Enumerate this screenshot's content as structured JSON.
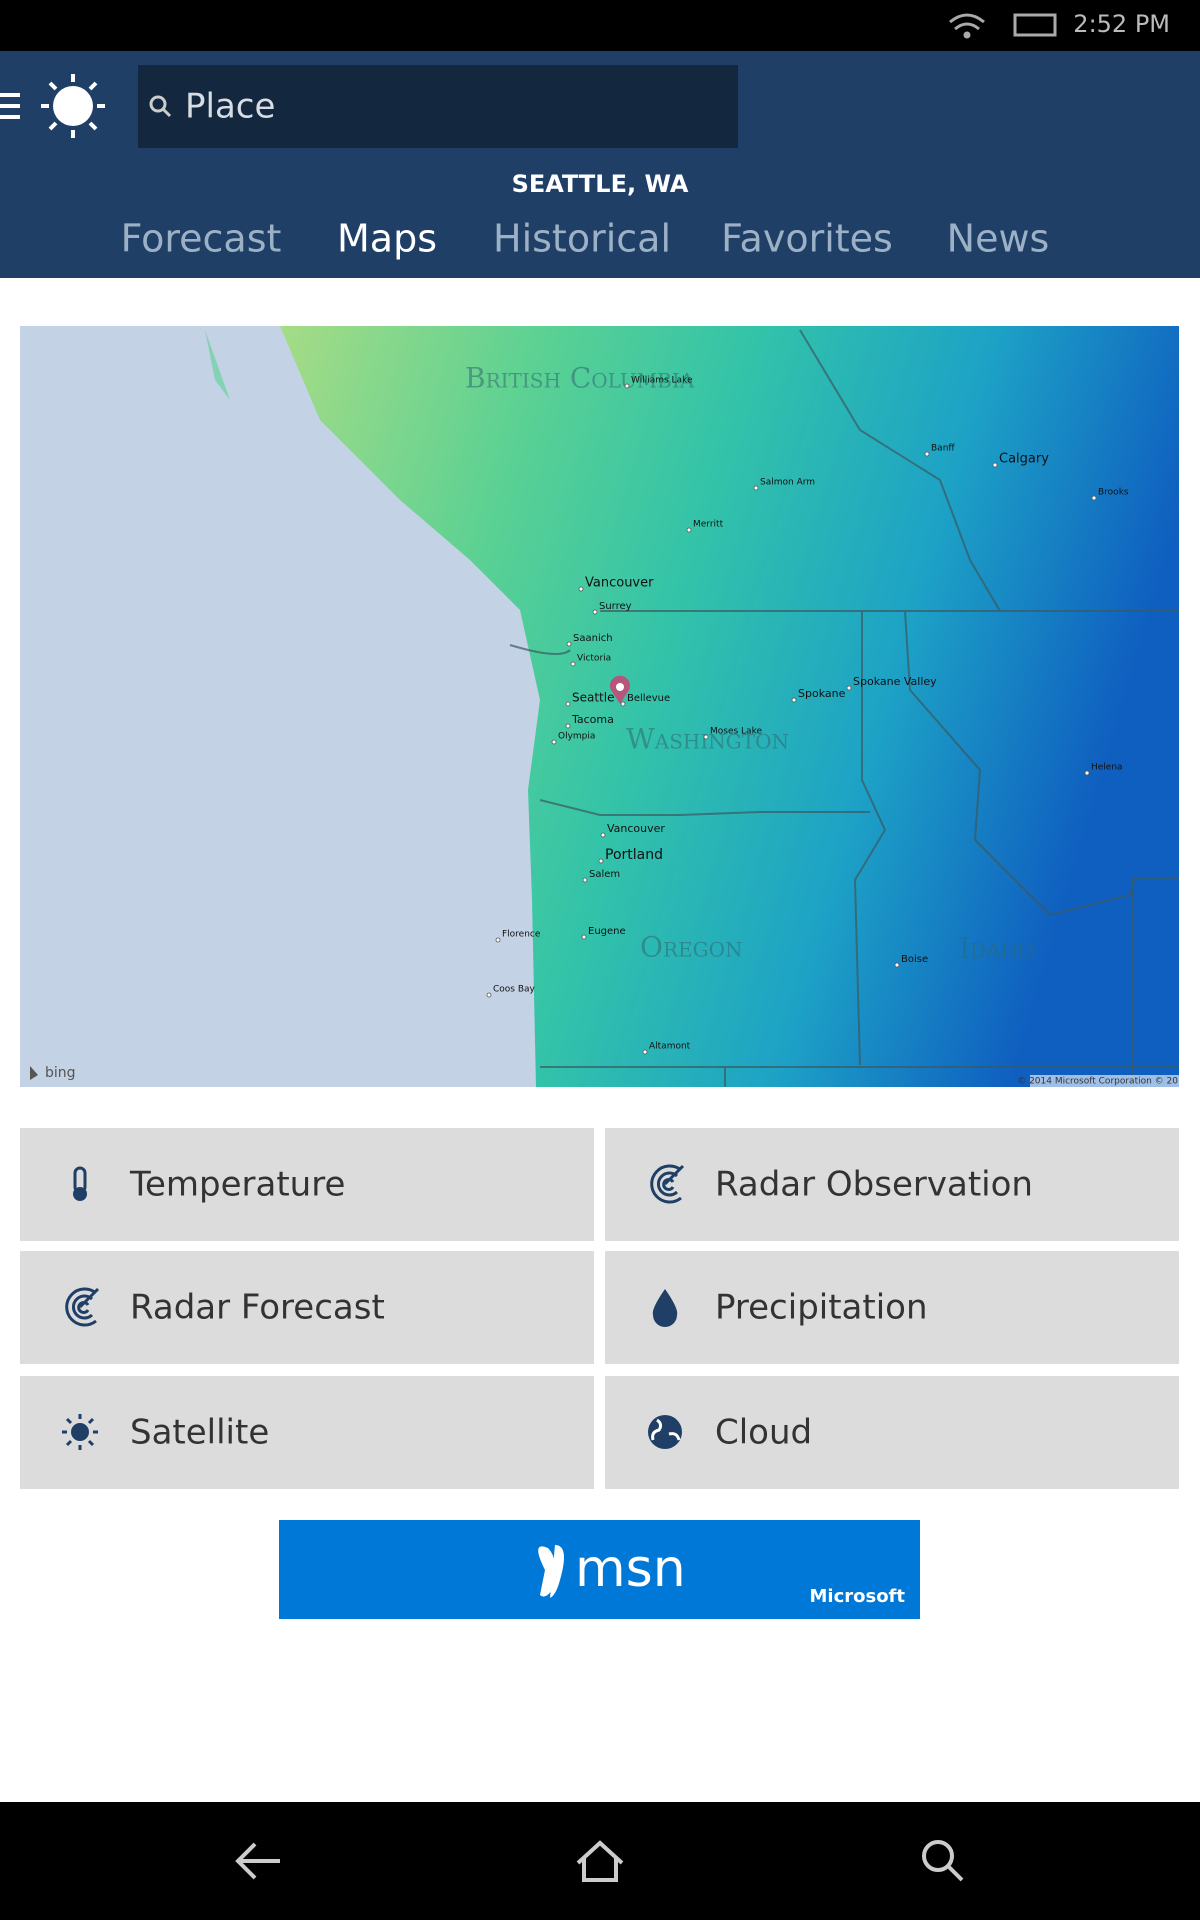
{
  "status_bar": {
    "time": "2:52 PM"
  },
  "header": {
    "search_placeholder": "Place",
    "location": "SEATTLE, WA",
    "tabs": [
      "Forecast",
      "Maps",
      "Historical",
      "Favorites",
      "News"
    ],
    "active_tab": 1
  },
  "map": {
    "region_labels": [
      "British Columbia",
      "Washington",
      "Oregon",
      "Idaho"
    ],
    "city_labels": [
      "Williams Lake",
      "Banff",
      "Calgary",
      "Brooks",
      "Salmon Arm",
      "Merritt",
      "Vancouver",
      "Surrey",
      "Saanich",
      "Victoria",
      "Seattle",
      "Bellevue",
      "Tacoma",
      "Olympia",
      "Moses Lake",
      "Spokane",
      "Spokane Valley",
      "Helena",
      "Vancouver",
      "Portland",
      "Salem",
      "Eugene",
      "Florence",
      "Coos Bay",
      "Boise",
      "Altamont"
    ],
    "attribution": "bing",
    "copyright": "© 2014 Microsoft Corporation © 20"
  },
  "layers": [
    "Temperature",
    "Radar Observation",
    "Radar Forecast",
    "Precipitation",
    "Satellite",
    "Cloud"
  ],
  "ad": {
    "brand": "msn",
    "company": "Microsoft"
  }
}
